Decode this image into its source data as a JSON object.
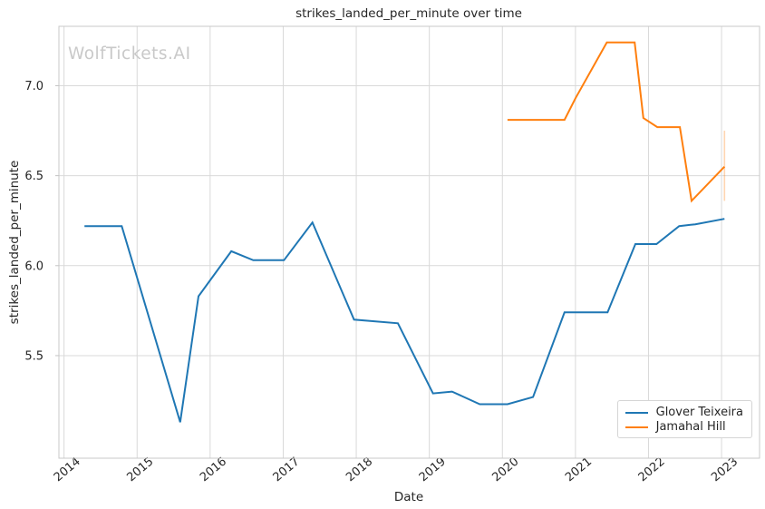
{
  "figure": {
    "watermark": "WolfTickets.AI"
  },
  "chart_data": {
    "type": "line",
    "title": "strikes_landed_per_minute over time",
    "xlabel": "Date",
    "ylabel": "strikes_landed_per_minute",
    "x_range": [
      2013.93,
      2023.52
    ],
    "y_range": [
      4.93,
      7.33
    ],
    "x_ticks": [
      2014,
      2015,
      2016,
      2017,
      2018,
      2019,
      2020,
      2021,
      2022,
      2023
    ],
    "y_ticks": [
      5.5,
      6.0,
      6.5,
      7.0
    ],
    "grid": true,
    "legend": {
      "position": "lower right"
    },
    "series": [
      {
        "name": "Glover Teixeira",
        "color": "#1f77b4",
        "points": [
          [
            2014.28,
            6.22
          ],
          [
            2014.79,
            6.22
          ],
          [
            2015.59,
            5.13
          ],
          [
            2015.84,
            5.83
          ],
          [
            2016.29,
            6.08
          ],
          [
            2016.59,
            6.03
          ],
          [
            2017.01,
            6.03
          ],
          [
            2017.4,
            6.24
          ],
          [
            2017.97,
            5.7
          ],
          [
            2018.57,
            5.68
          ],
          [
            2019.05,
            5.29
          ],
          [
            2019.31,
            5.3
          ],
          [
            2019.69,
            5.23
          ],
          [
            2020.07,
            5.23
          ],
          [
            2020.42,
            5.27
          ],
          [
            2020.85,
            5.74
          ],
          [
            2021.44,
            5.74
          ],
          [
            2021.82,
            6.12
          ],
          [
            2022.11,
            6.12
          ],
          [
            2022.42,
            6.22
          ],
          [
            2022.64,
            6.23
          ],
          [
            2023.04,
            6.26
          ]
        ]
      },
      {
        "name": "Jamahal Hill",
        "color": "#ff7f0e",
        "points": [
          [
            2020.07,
            6.81
          ],
          [
            2020.85,
            6.81
          ],
          [
            2021.0,
            6.93
          ],
          [
            2021.43,
            7.24
          ],
          [
            2021.81,
            7.24
          ],
          [
            2021.93,
            6.82
          ],
          [
            2022.12,
            6.77
          ],
          [
            2022.43,
            6.77
          ],
          [
            2022.59,
            6.36
          ],
          [
            2023.04,
            6.55
          ]
        ]
      }
    ],
    "error_bar": {
      "x": 2023.04,
      "y_low": 6.36,
      "y_high": 6.75,
      "color": "#ff7f0e",
      "opacity": 0.32
    }
  },
  "style": {
    "grid_color": "#d9d9d9",
    "spine_color": "#c8c8c8",
    "tick_color": "#c2c2c2",
    "text_color": "#262626",
    "watermark_color": "#c9c9c9",
    "background": "#ffffff"
  }
}
